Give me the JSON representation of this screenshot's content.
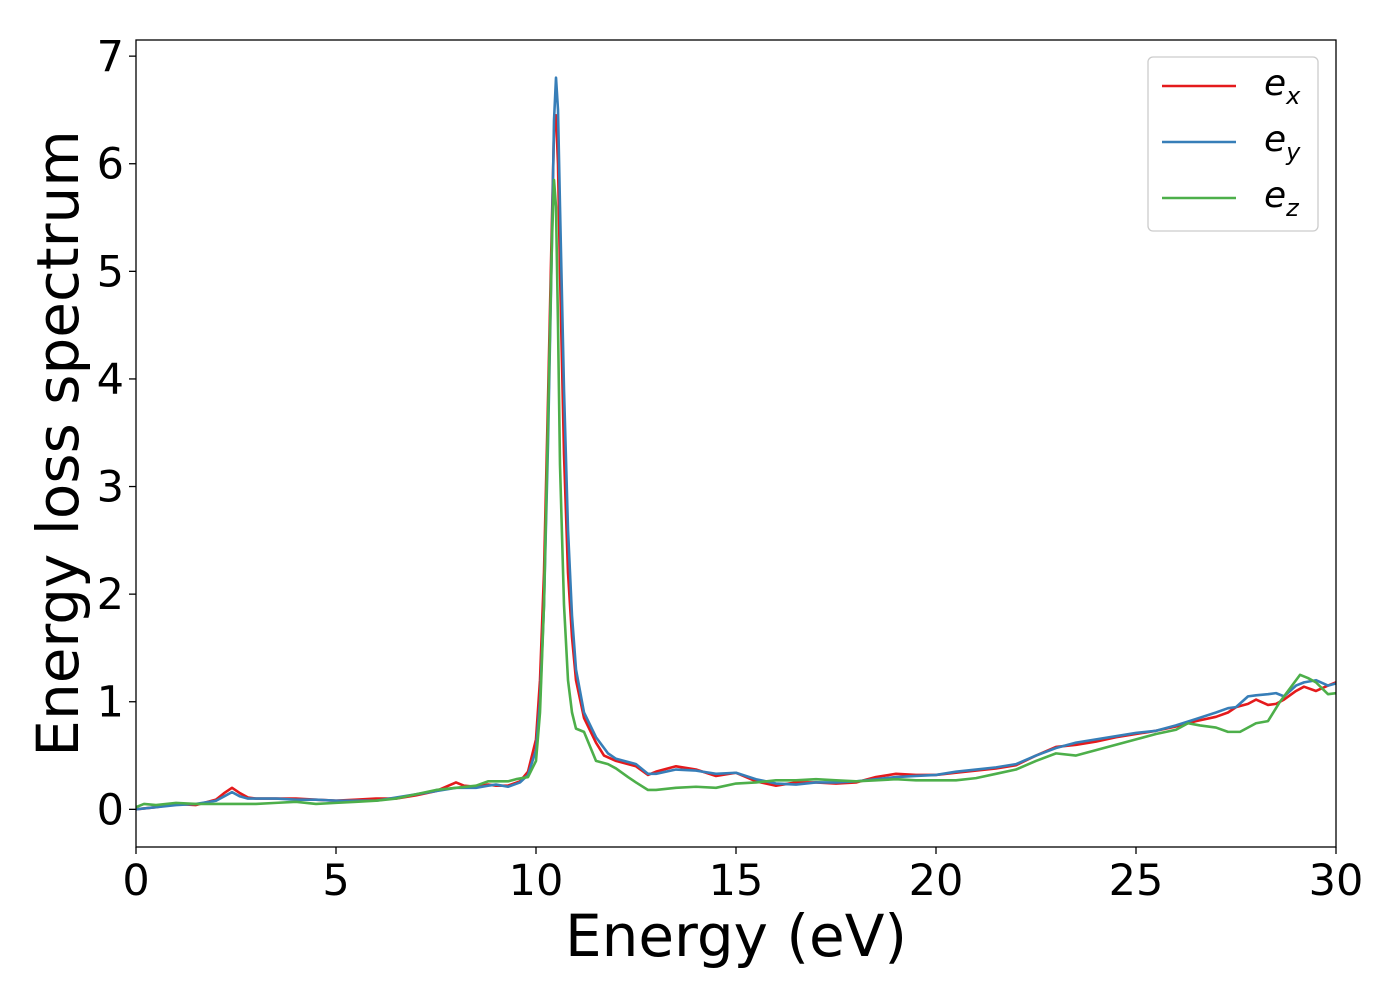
{
  "chart_data": {
    "type": "line",
    "xlabel": "Energy (eV)",
    "ylabel": "Energy loss spectrum",
    "xlim": [
      0,
      30
    ],
    "ylim": [
      -0.35,
      7.15
    ],
    "xticks": [
      0,
      5,
      10,
      15,
      20,
      25,
      30
    ],
    "yticks": [
      0,
      1,
      2,
      3,
      4,
      5,
      6,
      7
    ],
    "grid": false,
    "legend_position": "top-right",
    "series": [
      {
        "name": "e_x",
        "legend_base": "e",
        "legend_sub": "x",
        "color": "#e41a1c",
        "points": [
          [
            0,
            0.0
          ],
          [
            0.5,
            0.02
          ],
          [
            1,
            0.05
          ],
          [
            1.5,
            0.04
          ],
          [
            2,
            0.09
          ],
          [
            2.2,
            0.15
          ],
          [
            2.4,
            0.2
          ],
          [
            2.6,
            0.15
          ],
          [
            2.8,
            0.11
          ],
          [
            3,
            0.1
          ],
          [
            3.5,
            0.1
          ],
          [
            4,
            0.1
          ],
          [
            4.5,
            0.09
          ],
          [
            5,
            0.08
          ],
          [
            5.5,
            0.09
          ],
          [
            6,
            0.1
          ],
          [
            6.5,
            0.1
          ],
          [
            7,
            0.13
          ],
          [
            7.5,
            0.17
          ],
          [
            8,
            0.25
          ],
          [
            8.2,
            0.22
          ],
          [
            8.5,
            0.21
          ],
          [
            8.8,
            0.23
          ],
          [
            9,
            0.22
          ],
          [
            9.3,
            0.22
          ],
          [
            9.6,
            0.26
          ],
          [
            9.8,
            0.35
          ],
          [
            10,
            0.65
          ],
          [
            10.1,
            1.2
          ],
          [
            10.2,
            2.2
          ],
          [
            10.3,
            3.8
          ],
          [
            10.4,
            5.5
          ],
          [
            10.45,
            6.3
          ],
          [
            10.5,
            6.45
          ],
          [
            10.55,
            6.0
          ],
          [
            10.6,
            5.0
          ],
          [
            10.7,
            3.3
          ],
          [
            10.8,
            2.2
          ],
          [
            10.9,
            1.6
          ],
          [
            11,
            1.2
          ],
          [
            11.2,
            0.85
          ],
          [
            11.5,
            0.62
          ],
          [
            11.7,
            0.5
          ],
          [
            12,
            0.45
          ],
          [
            12.5,
            0.4
          ],
          [
            12.8,
            0.32
          ],
          [
            13,
            0.35
          ],
          [
            13.5,
            0.4
          ],
          [
            14,
            0.37
          ],
          [
            14.5,
            0.31
          ],
          [
            15,
            0.34
          ],
          [
            15.5,
            0.26
          ],
          [
            16,
            0.22
          ],
          [
            16.5,
            0.25
          ],
          [
            17,
            0.25
          ],
          [
            17.5,
            0.24
          ],
          [
            18,
            0.25
          ],
          [
            18.5,
            0.3
          ],
          [
            19,
            0.33
          ],
          [
            19.5,
            0.32
          ],
          [
            20,
            0.32
          ],
          [
            20.5,
            0.34
          ],
          [
            21,
            0.36
          ],
          [
            21.5,
            0.38
          ],
          [
            22,
            0.41
          ],
          [
            22.5,
            0.5
          ],
          [
            23,
            0.58
          ],
          [
            23.5,
            0.6
          ],
          [
            24,
            0.63
          ],
          [
            24.5,
            0.67
          ],
          [
            25,
            0.7
          ],
          [
            25.5,
            0.73
          ],
          [
            26,
            0.77
          ],
          [
            26.5,
            0.82
          ],
          [
            27,
            0.86
          ],
          [
            27.3,
            0.9
          ],
          [
            27.5,
            0.95
          ],
          [
            27.8,
            0.98
          ],
          [
            28,
            1.02
          ],
          [
            28.3,
            0.97
          ],
          [
            28.5,
            0.98
          ],
          [
            28.7,
            1.02
          ],
          [
            29,
            1.1
          ],
          [
            29.2,
            1.14
          ],
          [
            29.5,
            1.1
          ],
          [
            29.8,
            1.15
          ],
          [
            30,
            1.18
          ]
        ]
      },
      {
        "name": "e_y",
        "legend_base": "e",
        "legend_sub": "y",
        "color": "#377eb8",
        "points": [
          [
            0,
            0.0
          ],
          [
            0.5,
            0.02
          ],
          [
            1,
            0.04
          ],
          [
            1.5,
            0.05
          ],
          [
            2,
            0.08
          ],
          [
            2.2,
            0.12
          ],
          [
            2.4,
            0.16
          ],
          [
            2.6,
            0.12
          ],
          [
            2.8,
            0.1
          ],
          [
            3,
            0.1
          ],
          [
            3.5,
            0.1
          ],
          [
            4,
            0.09
          ],
          [
            4.5,
            0.09
          ],
          [
            5,
            0.08
          ],
          [
            5.5,
            0.08
          ],
          [
            6,
            0.08
          ],
          [
            6.5,
            0.11
          ],
          [
            7,
            0.14
          ],
          [
            7.5,
            0.17
          ],
          [
            8,
            0.2
          ],
          [
            8.5,
            0.2
          ],
          [
            8.8,
            0.22
          ],
          [
            9,
            0.23
          ],
          [
            9.3,
            0.21
          ],
          [
            9.6,
            0.25
          ],
          [
            9.8,
            0.32
          ],
          [
            10,
            0.55
          ],
          [
            10.1,
            1.0
          ],
          [
            10.2,
            1.9
          ],
          [
            10.3,
            3.4
          ],
          [
            10.4,
            5.3
          ],
          [
            10.45,
            6.4
          ],
          [
            10.5,
            6.8
          ],
          [
            10.55,
            6.5
          ],
          [
            10.6,
            5.6
          ],
          [
            10.7,
            3.9
          ],
          [
            10.8,
            2.6
          ],
          [
            10.9,
            1.8
          ],
          [
            11,
            1.3
          ],
          [
            11.2,
            0.9
          ],
          [
            11.5,
            0.67
          ],
          [
            11.8,
            0.52
          ],
          [
            12,
            0.47
          ],
          [
            12.5,
            0.42
          ],
          [
            12.8,
            0.33
          ],
          [
            13,
            0.33
          ],
          [
            13.5,
            0.37
          ],
          [
            14,
            0.36
          ],
          [
            14.5,
            0.33
          ],
          [
            15,
            0.34
          ],
          [
            15.5,
            0.28
          ],
          [
            16,
            0.24
          ],
          [
            16.5,
            0.23
          ],
          [
            17,
            0.25
          ],
          [
            17.5,
            0.25
          ],
          [
            18,
            0.26
          ],
          [
            18.5,
            0.28
          ],
          [
            19,
            0.3
          ],
          [
            19.5,
            0.31
          ],
          [
            20,
            0.32
          ],
          [
            20.5,
            0.35
          ],
          [
            21,
            0.37
          ],
          [
            21.5,
            0.39
          ],
          [
            22,
            0.42
          ],
          [
            22.5,
            0.5
          ],
          [
            23,
            0.57
          ],
          [
            23.5,
            0.62
          ],
          [
            24,
            0.65
          ],
          [
            24.5,
            0.68
          ],
          [
            25,
            0.71
          ],
          [
            25.5,
            0.73
          ],
          [
            26,
            0.78
          ],
          [
            26.5,
            0.84
          ],
          [
            27,
            0.9
          ],
          [
            27.3,
            0.94
          ],
          [
            27.5,
            0.95
          ],
          [
            27.8,
            1.05
          ],
          [
            28,
            1.06
          ],
          [
            28.3,
            1.07
          ],
          [
            28.5,
            1.08
          ],
          [
            28.7,
            1.05
          ],
          [
            29,
            1.15
          ],
          [
            29.2,
            1.18
          ],
          [
            29.5,
            1.2
          ],
          [
            29.8,
            1.15
          ],
          [
            30,
            1.17
          ]
        ]
      },
      {
        "name": "e_z",
        "legend_base": "e",
        "legend_sub": "z",
        "color": "#4daf4a",
        "points": [
          [
            0,
            0.02
          ],
          [
            0.2,
            0.05
          ],
          [
            0.5,
            0.04
          ],
          [
            1,
            0.06
          ],
          [
            1.5,
            0.05
          ],
          [
            2,
            0.05
          ],
          [
            2.5,
            0.05
          ],
          [
            3,
            0.05
          ],
          [
            3.5,
            0.06
          ],
          [
            4,
            0.07
          ],
          [
            4.5,
            0.05
          ],
          [
            5,
            0.06
          ],
          [
            5.5,
            0.07
          ],
          [
            6,
            0.08
          ],
          [
            6.5,
            0.1
          ],
          [
            7,
            0.14
          ],
          [
            7.5,
            0.18
          ],
          [
            8,
            0.2
          ],
          [
            8.5,
            0.22
          ],
          [
            8.8,
            0.26
          ],
          [
            9,
            0.26
          ],
          [
            9.3,
            0.26
          ],
          [
            9.5,
            0.28
          ],
          [
            9.8,
            0.3
          ],
          [
            10,
            0.45
          ],
          [
            10.1,
            0.9
          ],
          [
            10.2,
            1.9
          ],
          [
            10.3,
            3.6
          ],
          [
            10.4,
            5.3
          ],
          [
            10.45,
            5.85
          ],
          [
            10.5,
            5.6
          ],
          [
            10.55,
            4.5
          ],
          [
            10.6,
            3.2
          ],
          [
            10.7,
            1.9
          ],
          [
            10.8,
            1.2
          ],
          [
            10.9,
            0.9
          ],
          [
            11,
            0.75
          ],
          [
            11.2,
            0.72
          ],
          [
            11.5,
            0.45
          ],
          [
            11.8,
            0.42
          ],
          [
            12,
            0.38
          ],
          [
            12.3,
            0.3
          ],
          [
            12.5,
            0.25
          ],
          [
            12.8,
            0.18
          ],
          [
            13,
            0.18
          ],
          [
            13.5,
            0.2
          ],
          [
            14,
            0.21
          ],
          [
            14.5,
            0.2
          ],
          [
            15,
            0.24
          ],
          [
            15.5,
            0.25
          ],
          [
            16,
            0.27
          ],
          [
            16.5,
            0.27
          ],
          [
            17,
            0.28
          ],
          [
            17.5,
            0.27
          ],
          [
            18,
            0.26
          ],
          [
            18.5,
            0.27
          ],
          [
            19,
            0.28
          ],
          [
            19.5,
            0.27
          ],
          [
            20,
            0.27
          ],
          [
            20.5,
            0.27
          ],
          [
            21,
            0.29
          ],
          [
            21.5,
            0.33
          ],
          [
            22,
            0.37
          ],
          [
            22.5,
            0.45
          ],
          [
            23,
            0.52
          ],
          [
            23.5,
            0.5
          ],
          [
            24,
            0.55
          ],
          [
            24.5,
            0.6
          ],
          [
            25,
            0.65
          ],
          [
            25.5,
            0.7
          ],
          [
            26,
            0.74
          ],
          [
            26.3,
            0.8
          ],
          [
            26.6,
            0.78
          ],
          [
            27,
            0.76
          ],
          [
            27.3,
            0.72
          ],
          [
            27.6,
            0.72
          ],
          [
            28,
            0.8
          ],
          [
            28.3,
            0.82
          ],
          [
            28.6,
            1.0
          ],
          [
            28.9,
            1.15
          ],
          [
            29.1,
            1.25
          ],
          [
            29.3,
            1.22
          ],
          [
            29.5,
            1.18
          ],
          [
            29.8,
            1.07
          ],
          [
            30,
            1.08
          ]
        ]
      }
    ]
  }
}
